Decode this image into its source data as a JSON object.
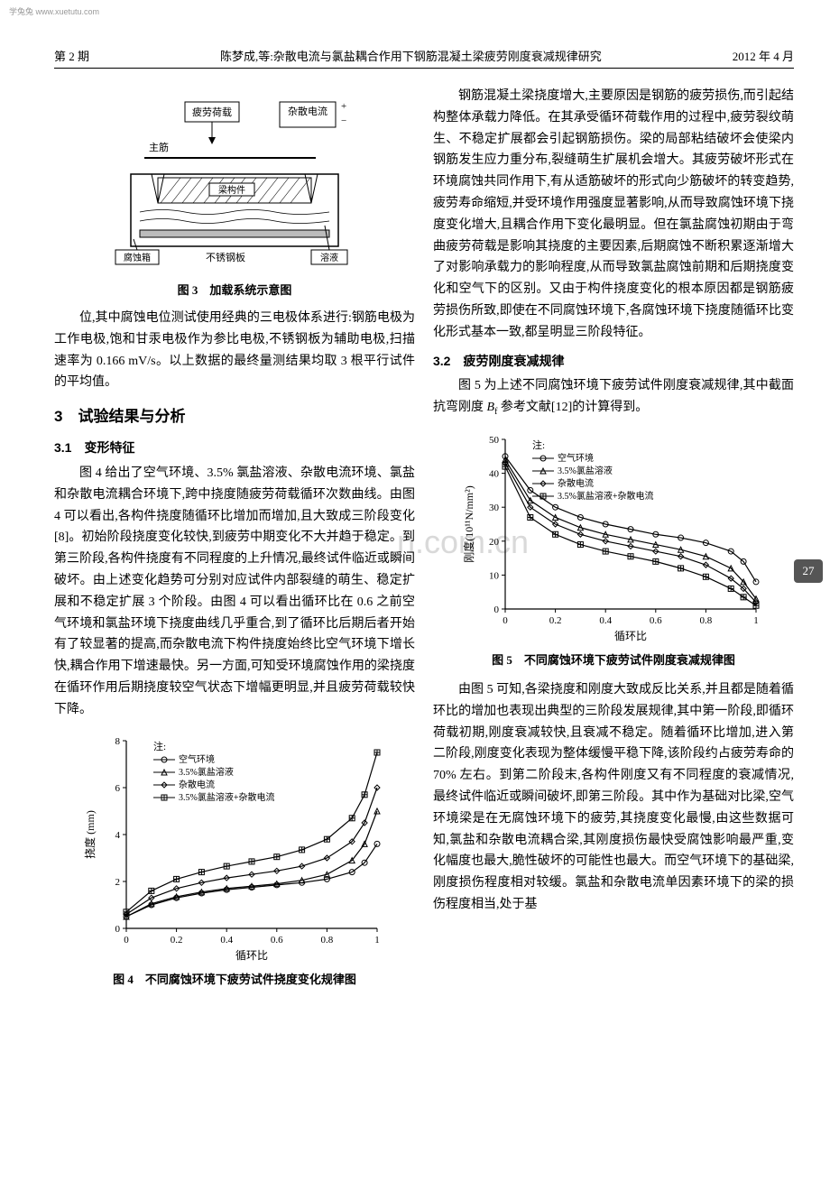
{
  "watermark": "学兔兔  www.xuetutu.com",
  "header": {
    "left": "第 2 期",
    "center": "陈梦成,等:杂散电流与氯盐耦合作用下钢筋混凝土梁疲劳刚度衰减规律研究",
    "right": "2012 年 4 月"
  },
  "logo_watermark": "n.com.cn",
  "page_number": "27",
  "fig3": {
    "caption": "图 3　加载系统示意图",
    "labels": {
      "fatigue_load": "疲劳荷载",
      "stray_current": "杂散电流",
      "main_bar": "主筋",
      "member": "梁构件",
      "corrosion_box": "腐蚀箱",
      "steel_plate": "不锈钢板",
      "solution": "溶液"
    }
  },
  "left_col": {
    "p1": "位,其中腐蚀电位测试使用经典的三电极体系进行:钢筋电极为工作电极,饱和甘汞电极作为参比电极,不锈钢板为辅助电极,扫描速率为 0.166 mV/s。以上数据的最终量测结果均取 3 根平行试件的平均值。",
    "sec3": "3　试验结果与分析",
    "sec31": "3.1　变形特征",
    "p2": "图 4 给出了空气环境、3.5% 氯盐溶液、杂散电流环境、氯盐和杂散电流耦合环境下,跨中挠度随疲劳荷载循环次数曲线。由图 4 可以看出,各构件挠度随循环比增加而增加,且大致成三阶段变化[8]。初始阶段挠度变化较快,到疲劳中期变化不大并趋于稳定。到第三阶段,各构件挠度有不同程度的上升情况,最终试件临近或瞬间破坏。由上述变化趋势可分别对应试件内部裂缝的萌生、稳定扩展和不稳定扩展 3 个阶段。由图 4 可以看出循环比在 0.6 之前空气环境和氯盐环境下挠度曲线几乎重合,到了循环比后期后者开始有了较显著的提高,而杂散电流下构件挠度始终比空气环境下增长快,耦合作用下增速最快。另一方面,可知受环境腐蚀作用的梁挠度在循环作用后期挠度较空气状态下增幅更明显,并且疲劳荷载较快下降。"
  },
  "right_col": {
    "p1": "钢筋混凝土梁挠度增大,主要原因是钢筋的疲劳损伤,而引起结构整体承载力降低。在其承受循环荷载作用的过程中,疲劳裂纹萌生、不稳定扩展都会引起钢筋损伤。梁的局部粘结破坏会使梁内钢筋发生应力重分布,裂缝萌生扩展机会增大。其疲劳破坏形式在环境腐蚀共同作用下,有从适筋破坏的形式向少筋破坏的转变趋势,疲劳寿命缩短,并受环境作用强度显著影响,从而导致腐蚀环境下挠度变化增大,且耦合作用下变化最明显。但在氯盐腐蚀初期由于弯曲疲劳荷载是影响其挠度的主要因素,后期腐蚀不断积累逐渐增大了对影响承载力的影响程度,从而导致氯盐腐蚀前期和后期挠度变化和空气下的区别。又由于构件挠度变化的根本原因都是钢筋疲劳损伤所致,即使在不同腐蚀环境下,各腐蚀环境下挠度随循环比变化形式基本一致,都呈明显三阶段特征。",
    "sec32": "3.2　疲劳刚度衰减规律",
    "p2_a": "图 5 为上述不同腐蚀环境下疲劳试件刚度衰减规律,其中截面抗弯刚度 ",
    "p2_b": " 参考文献[12]的计算得到。",
    "bf": "B",
    "bf_sub": "f",
    "p3": "由图 5 可知,各梁挠度和刚度大致成反比关系,并且都是随着循环比的增加也表现出典型的三阶段发展规律,其中第一阶段,即循环荷载初期,刚度衰减较快,且衰减不稳定。随着循环比增加,进入第二阶段,刚度变化表现为整体缓慢平稳下降,该阶段约占疲劳寿命的 70% 左右。到第二阶段末,各构件刚度又有不同程度的衰减情况,最终试件临近或瞬间破坏,即第三阶段。其中作为基础对比梁,空气环境梁是在无腐蚀环境下的疲劳,其挠度变化最慢,由这些数据可知,氯盐和杂散电流耦合梁,其刚度损伤最快受腐蚀影响最严重,变化幅度也最大,脆性破坏的可能性也最大。而空气环境下的基础梁,刚度损伤程度相对较缓。氯盐和杂散电流单因素环境下的梁的损伤程度相当,处于基"
  },
  "fig4": {
    "caption": "图 4　不同腐蚀环境下疲劳试件挠度变化规律图",
    "type": "line",
    "xlabel": "循环比",
    "ylabel": "挠度 (mm)",
    "xlim": [
      0,
      1
    ],
    "ylim": [
      0,
      8
    ],
    "xtick_step": 0.2,
    "ytick_step": 2,
    "legend_title": "注:",
    "legend": [
      "空气环境",
      "3.5%氯盐溶液",
      "杂散电流",
      "3.5%氯盐溶液+杂散电流"
    ],
    "markers": [
      "circle",
      "triangle",
      "diamond",
      "plus-square"
    ],
    "series_color": "#000000",
    "background_color": "#ffffff",
    "axis_color": "#000000",
    "label_fontsize": 11,
    "line_width": 1.2,
    "x": [
      0,
      0.1,
      0.2,
      0.3,
      0.4,
      0.5,
      0.6,
      0.7,
      0.8,
      0.9,
      0.95,
      1.0
    ],
    "series": {
      "air": [
        0.5,
        1.0,
        1.3,
        1.5,
        1.65,
        1.75,
        1.85,
        1.95,
        2.1,
        2.4,
        2.8,
        3.6
      ],
      "nacl": [
        0.5,
        1.05,
        1.35,
        1.55,
        1.7,
        1.8,
        1.9,
        2.05,
        2.3,
        2.9,
        3.6,
        5.0
      ],
      "stray": [
        0.6,
        1.3,
        1.7,
        1.95,
        2.15,
        2.3,
        2.45,
        2.65,
        3.0,
        3.7,
        4.5,
        6.0
      ],
      "coupled": [
        0.7,
        1.6,
        2.1,
        2.4,
        2.65,
        2.85,
        3.05,
        3.35,
        3.8,
        4.7,
        5.7,
        7.5
      ]
    }
  },
  "fig5": {
    "caption": "图 5　不同腐蚀环境下疲劳试件刚度衰减规律图",
    "type": "line",
    "xlabel": "循环比",
    "ylabel": "刚度(10¹¹N/mm²)",
    "xlim": [
      0,
      1
    ],
    "ylim": [
      0,
      50
    ],
    "xtick_step": 0.2,
    "ytick_step": 10,
    "legend_title": "注:",
    "legend": [
      "空气环境",
      "3.5%氯盐溶液",
      "杂散电流",
      "3.5%氯盐溶液+杂散电流"
    ],
    "markers": [
      "circle",
      "triangle",
      "diamond",
      "plus-square"
    ],
    "series_color": "#000000",
    "background_color": "#ffffff",
    "axis_color": "#000000",
    "label_fontsize": 11,
    "line_width": 1.2,
    "x": [
      0,
      0.1,
      0.2,
      0.3,
      0.4,
      0.5,
      0.6,
      0.7,
      0.8,
      0.9,
      0.95,
      1.0
    ],
    "series": {
      "air": [
        45,
        35,
        30,
        27,
        25,
        23.5,
        22,
        21,
        19.5,
        17,
        14,
        8
      ],
      "nacl": [
        44,
        32,
        27,
        24,
        22,
        20.5,
        19,
        17.5,
        15.5,
        12,
        8,
        3
      ],
      "stray": [
        43,
        30,
        25,
        22,
        20,
        18.5,
        17,
        15.5,
        13,
        9,
        6,
        2
      ],
      "coupled": [
        42,
        27,
        22,
        19,
        17,
        15.5,
        14,
        12,
        9.5,
        6,
        3.5,
        1
      ]
    }
  }
}
